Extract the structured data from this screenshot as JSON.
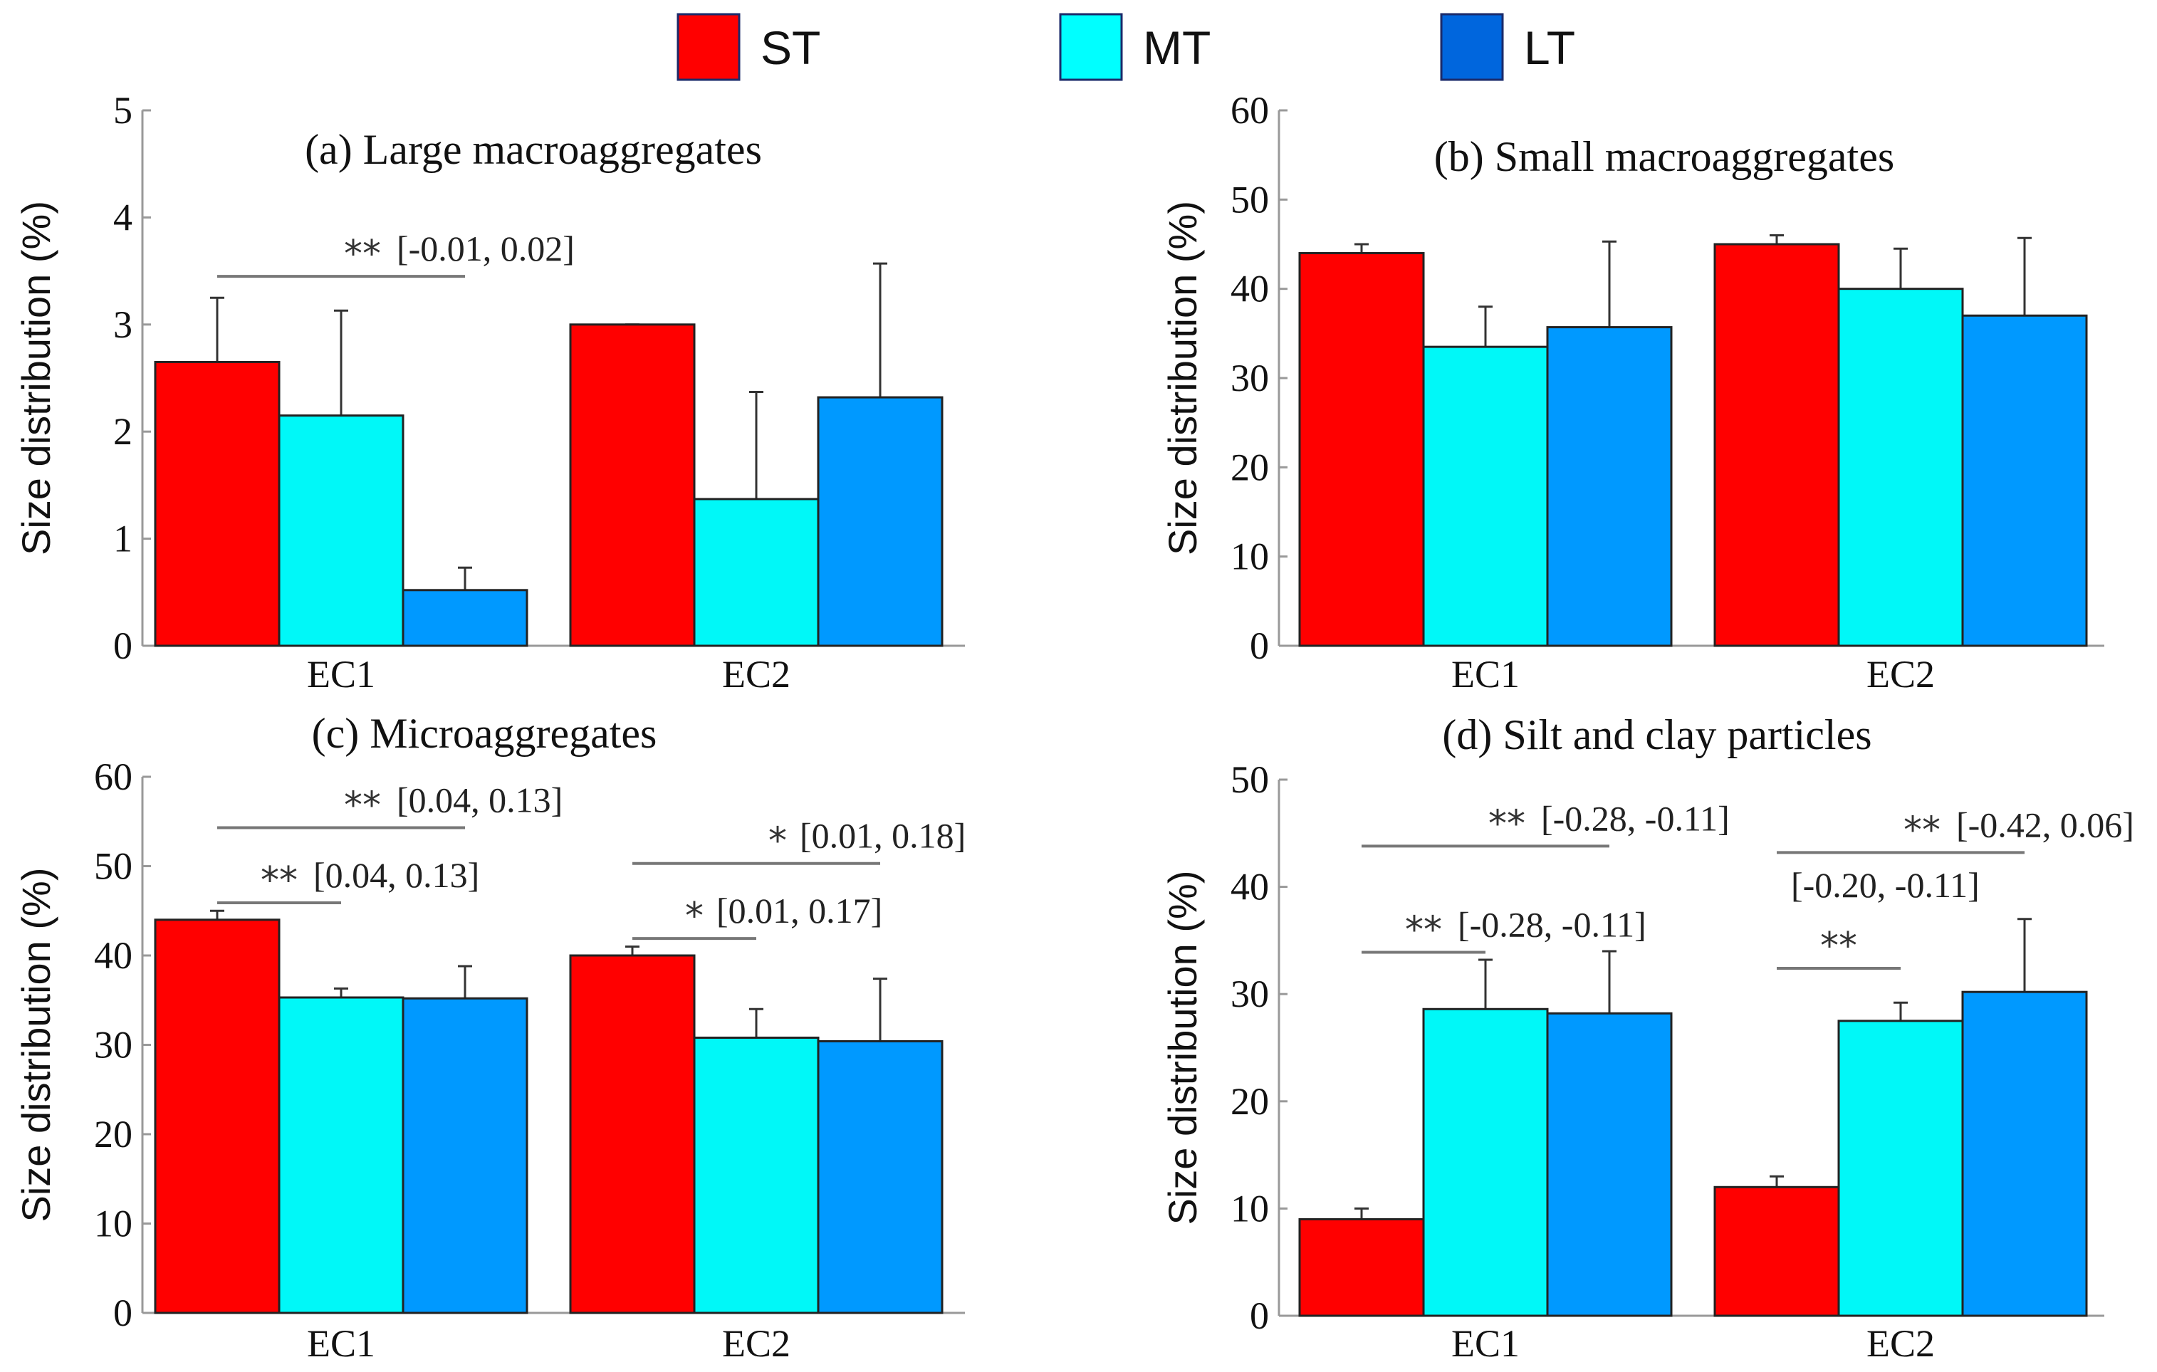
{
  "legend": [
    {
      "label": "ST",
      "color": "#ff0000"
    },
    {
      "label": "MT",
      "color": "#00ffff"
    },
    {
      "label": "LT",
      "color": "#0066dd"
    }
  ],
  "bar_colors": {
    "ST": "#ff0000",
    "MT": "#00f8f8",
    "LT": "#0099ff"
  },
  "chart_data": [
    {
      "type": "bar",
      "title": "(a) Large macroaggregates",
      "ylabel": "Size distribution (%)",
      "categories": [
        "EC1",
        "EC2"
      ],
      "ylim": [
        0,
        5
      ],
      "yticks": [
        0,
        1,
        2,
        3,
        4,
        5
      ],
      "series": [
        {
          "name": "ST",
          "values": [
            2.65,
            3.0
          ],
          "error_upper": [
            3.25,
            3.0
          ]
        },
        {
          "name": "MT",
          "values": [
            2.15,
            1.37
          ],
          "error_upper": [
            3.13,
            2.37
          ]
        },
        {
          "name": "LT",
          "values": [
            0.52,
            2.32
          ],
          "error_upper": [
            0.73,
            3.57
          ]
        }
      ],
      "annotations": [
        {
          "category": "EC1",
          "from": "ST",
          "to": "LT",
          "y": 3.45,
          "stars": "**",
          "ci": "[-0.01, 0.02]"
        }
      ]
    },
    {
      "type": "bar",
      "title": "(b) Small macroaggregates",
      "ylabel": "Size distribution (%)",
      "categories": [
        "EC1",
        "EC2"
      ],
      "ylim": [
        0,
        60
      ],
      "yticks": [
        0,
        10,
        20,
        30,
        40,
        50,
        60
      ],
      "series": [
        {
          "name": "ST",
          "values": [
            44,
            45
          ],
          "error_upper": [
            45,
            46
          ]
        },
        {
          "name": "MT",
          "values": [
            33.5,
            40
          ],
          "error_upper": [
            38,
            44.5
          ]
        },
        {
          "name": "LT",
          "values": [
            35.7,
            37
          ],
          "error_upper": [
            45.3,
            45.7
          ]
        }
      ],
      "annotations": []
    },
    {
      "type": "bar",
      "title": "(c) Microaggregates",
      "ylabel": "Size distribution (%)",
      "categories": [
        "EC1",
        "EC2"
      ],
      "ylim": [
        0,
        60
      ],
      "yticks": [
        0,
        10,
        20,
        30,
        40,
        50,
        60
      ],
      "series": [
        {
          "name": "ST",
          "values": [
            44,
            40
          ],
          "error_upper": [
            45,
            41
          ]
        },
        {
          "name": "MT",
          "values": [
            35.3,
            30.8
          ],
          "error_upper": [
            36.3,
            34
          ]
        },
        {
          "name": "LT",
          "values": [
            35.2,
            30.4
          ],
          "error_upper": [
            38.8,
            37.4
          ]
        }
      ],
      "annotations": [
        {
          "category": "EC1",
          "from": "ST",
          "to": "LT",
          "y": 54.3,
          "stars": "**",
          "ci": "[0.04, 0.13]"
        },
        {
          "category": "EC1",
          "from": "ST",
          "to": "MT",
          "y": 45.9,
          "stars": "**",
          "ci": "[0.04, 0.13]"
        },
        {
          "category": "EC2",
          "from": "ST",
          "to": "LT",
          "y": 50.3,
          "stars": "*",
          "ci": "[0.01, 0.18]"
        },
        {
          "category": "EC2",
          "from": "ST",
          "to": "MT",
          "y": 41.9,
          "stars": "*",
          "ci": "[0.01, 0.17]"
        }
      ]
    },
    {
      "type": "bar",
      "title": "(d) Silt and clay particles",
      "ylabel": "Size distribution (%)",
      "categories": [
        "EC1",
        "EC2"
      ],
      "ylim": [
        0,
        50
      ],
      "yticks": [
        0,
        10,
        20,
        30,
        40,
        50
      ],
      "series": [
        {
          "name": "ST",
          "values": [
            9,
            12
          ],
          "error_upper": [
            10,
            13
          ]
        },
        {
          "name": "MT",
          "values": [
            28.6,
            27.5
          ],
          "error_upper": [
            33.2,
            29.2
          ]
        },
        {
          "name": "LT",
          "values": [
            28.2,
            30.2
          ],
          "error_upper": [
            34,
            37
          ]
        }
      ],
      "annotations": [
        {
          "category": "EC1",
          "from": "ST",
          "to": "LT",
          "y": 43.8,
          "stars": "**",
          "ci": "[-0.28, -0.11]"
        },
        {
          "category": "EC1",
          "from": "ST",
          "to": "MT",
          "y": 33.9,
          "stars": "**",
          "ci": "[-0.28, -0.11]"
        },
        {
          "category": "EC2",
          "from": "ST",
          "to": "LT",
          "y": 43.2,
          "stars": "**",
          "ci": "[-0.42, 0.06]"
        },
        {
          "category": "EC2",
          "from": "ST",
          "to": "MT",
          "y": 32.4,
          "stars": "**",
          "ci": "[-0.20, -0.11]"
        }
      ]
    }
  ]
}
